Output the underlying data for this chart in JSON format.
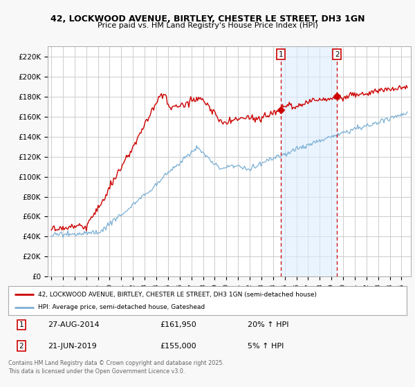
{
  "title": "42, LOCKWOOD AVENUE, BIRTLEY, CHESTER LE STREET, DH3 1GN",
  "subtitle": "Price paid vs. HM Land Registry's House Price Index (HPI)",
  "background_color": "#f8f8f8",
  "plot_bg_color": "#ffffff",
  "grid_color": "#cccccc",
  "line1_color": "#cc0000",
  "line2_color": "#7aafd4",
  "dashed_color": "#cc0000",
  "shade_color": "#ddeeff",
  "ylim": [
    0,
    230000
  ],
  "yticks": [
    0,
    20000,
    40000,
    60000,
    80000,
    100000,
    120000,
    140000,
    160000,
    180000,
    200000,
    220000
  ],
  "sale1_date_num": 2014.65,
  "sale2_date_num": 2019.47,
  "legend_line1": "42, LOCKWOOD AVENUE, BIRTLEY, CHESTER LE STREET, DH3 1GN (semi-detached house)",
  "legend_line2": "HPI: Average price, semi-detached house, Gateshead",
  "table_row1": [
    "1",
    "27-AUG-2014",
    "£161,950",
    "20% ↑ HPI"
  ],
  "table_row2": [
    "2",
    "21-JUN-2019",
    "£155,000",
    "5% ↑ HPI"
  ],
  "footer": "Contains HM Land Registry data © Crown copyright and database right 2025.\nThis data is licensed under the Open Government Licence v3.0.",
  "xstart": 1995,
  "xend": 2025
}
